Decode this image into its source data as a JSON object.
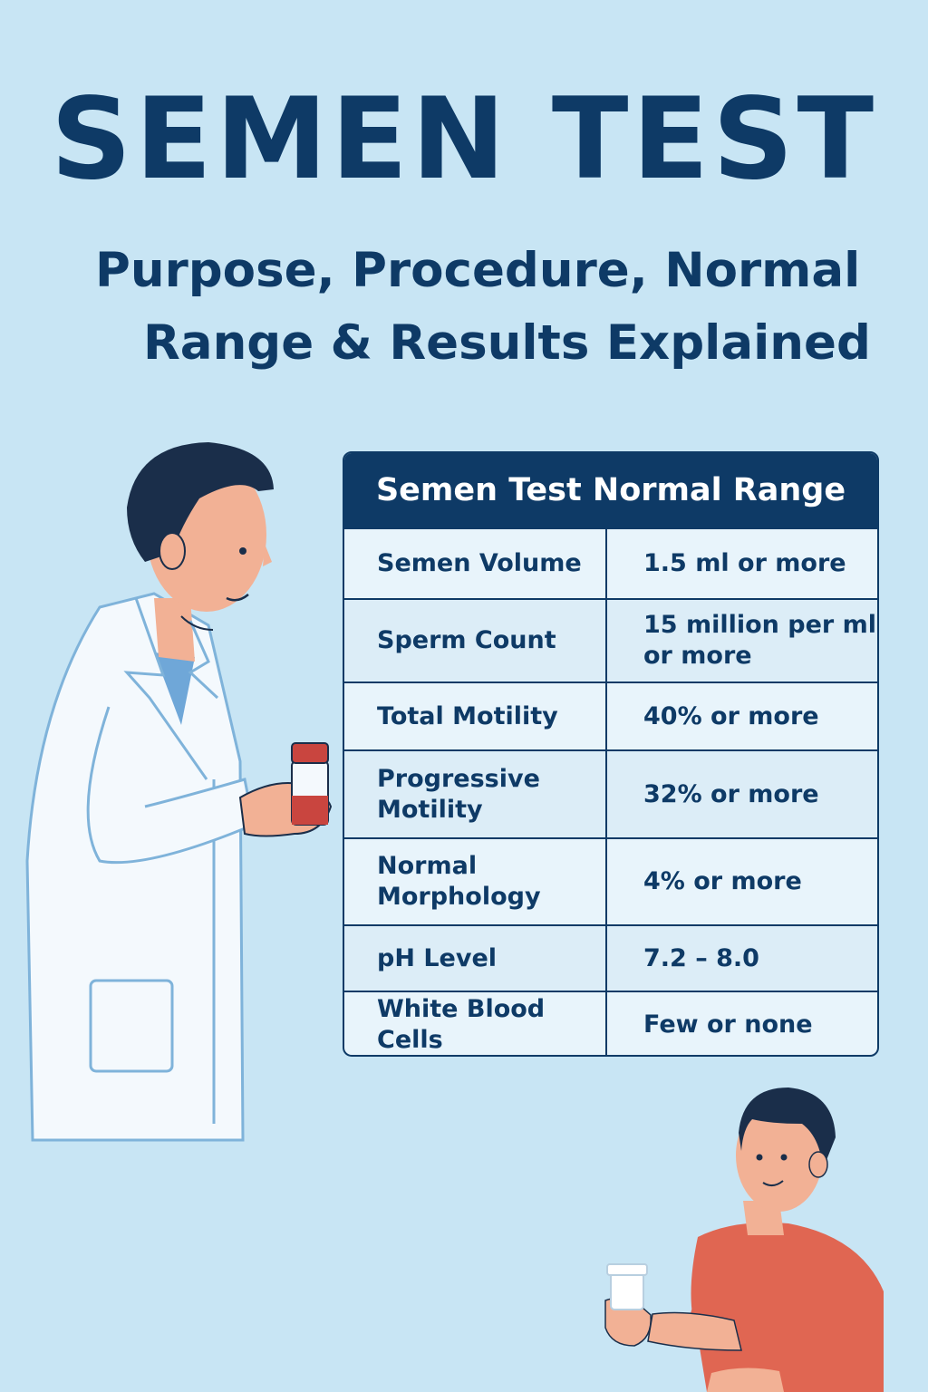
{
  "title": "SEMEN TEST",
  "subtitle": {
    "line1": "Purpose, Procedure, Normal",
    "line2": "Range & Results Explained"
  },
  "table": {
    "header": "Semen Test Normal Range",
    "rows": [
      {
        "parameter": "Semen Volume",
        "value": "1.5 ml or more"
      },
      {
        "parameter": "Sperm Count",
        "value": "15 million per ml\nor more"
      },
      {
        "parameter": "Total Motility",
        "value": "40% or more"
      },
      {
        "parameter": "Progressive\nMotility",
        "value": "32% or more"
      },
      {
        "parameter": "Normal\nMorphology",
        "value": "4% or more"
      },
      {
        "parameter": "pH Level",
        "value": "7.2 – 8.0"
      },
      {
        "parameter": "White Blood Cells",
        "value": "Few or none"
      }
    ]
  },
  "colors": {
    "background": "#c8e5f4",
    "navy": "#0e3a66",
    "coat": "#f4f9fd",
    "coat_outline": "#7fb3da",
    "skin": "#f2b195",
    "hair": "#1a2e4a",
    "shirt_red": "#e06652",
    "sample_red": "#c9453f"
  },
  "icons": {
    "doctor": "doctor-illustration",
    "patient": "patient-illustration"
  }
}
